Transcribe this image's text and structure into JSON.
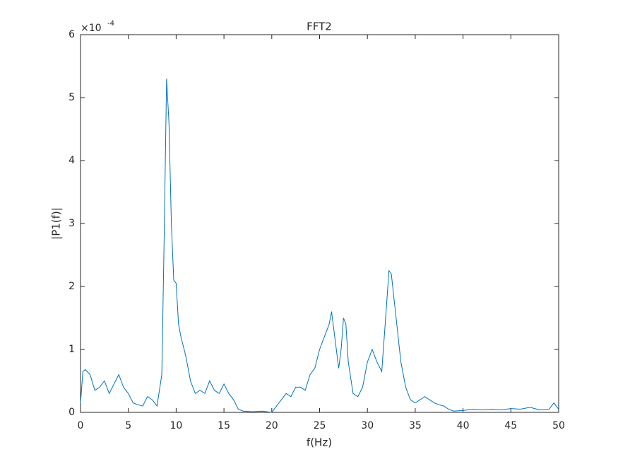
{
  "chart_data": {
    "type": "line",
    "title": "FFT2",
    "xlabel": "f(Hz)",
    "ylabel": "|P1(f)|",
    "y_multiplier": "×10",
    "y_exponent": "-4",
    "color": "#0072bd",
    "x": [
      0,
      0.25,
      0.5,
      1,
      1.5,
      2,
      2.5,
      3,
      3.5,
      4,
      4.5,
      5,
      5.5,
      6,
      6.5,
      7,
      7.5,
      8,
      8.5,
      8.75,
      9,
      9.25,
      9.5,
      9.75,
      10,
      10.25,
      10.5,
      11,
      11.5,
      12,
      12.5,
      13,
      13.5,
      14,
      14.5,
      15,
      15.5,
      16,
      16.5,
      17,
      18,
      19,
      20,
      20.5,
      21,
      21.5,
      22,
      22.5,
      23,
      23.5,
      24,
      24.5,
      25,
      25.5,
      26,
      26.25,
      26.5,
      27,
      27.25,
      27.5,
      27.75,
      28,
      28.5,
      29,
      29.5,
      30,
      30.5,
      31,
      31.5,
      32,
      32.25,
      32.5,
      33,
      33.5,
      34,
      34.5,
      35,
      35.5,
      36,
      36.5,
      37,
      37.5,
      38,
      38.5,
      39,
      40,
      41,
      42,
      43,
      44,
      45,
      46,
      47,
      48,
      49,
      49.5,
      50
    ],
    "values": [
      0.15,
      0.65,
      0.68,
      0.6,
      0.35,
      0.4,
      0.5,
      0.3,
      0.45,
      0.6,
      0.4,
      0.3,
      0.15,
      0.12,
      0.1,
      0.25,
      0.2,
      0.1,
      0.6,
      2.8,
      5.3,
      4.6,
      3.0,
      2.1,
      2.05,
      1.4,
      1.2,
      0.9,
      0.5,
      0.3,
      0.35,
      0.3,
      0.5,
      0.35,
      0.3,
      0.45,
      0.3,
      0.2,
      0.05,
      0.02,
      0.01,
      0.02,
      0.0,
      0.1,
      0.2,
      0.3,
      0.25,
      0.4,
      0.4,
      0.35,
      0.6,
      0.7,
      1.0,
      1.2,
      1.4,
      1.6,
      1.3,
      0.7,
      1.0,
      1.5,
      1.4,
      0.8,
      0.3,
      0.25,
      0.4,
      0.8,
      1.0,
      0.8,
      0.65,
      1.7,
      2.25,
      2.2,
      1.5,
      0.8,
      0.4,
      0.2,
      0.15,
      0.2,
      0.25,
      0.2,
      0.15,
      0.12,
      0.1,
      0.05,
      0.02,
      0.03,
      0.05,
      0.04,
      0.05,
      0.04,
      0.06,
      0.05,
      0.08,
      0.04,
      0.05,
      0.15,
      0.05
    ],
    "xlim": [
      0,
      50
    ],
    "xticks": [
      0,
      5,
      10,
      15,
      20,
      25,
      30,
      35,
      40,
      45,
      50
    ],
    "ylim": [
      0,
      6
    ],
    "yticks": [
      0,
      1,
      2,
      3,
      4,
      5,
      6
    ],
    "grid": false
  }
}
